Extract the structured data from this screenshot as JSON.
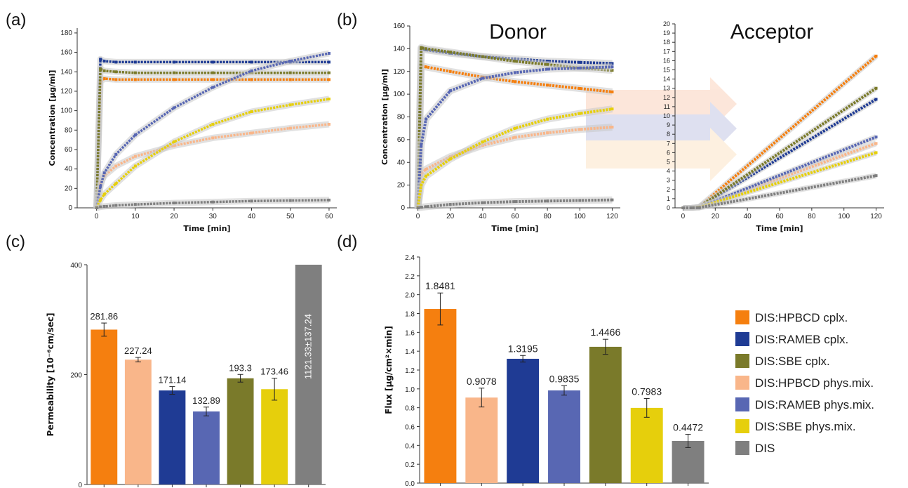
{
  "figure": {
    "panel_labels": [
      "(a)",
      "(b)",
      "(c)",
      "(d)"
    ],
    "panel_b_titles": {
      "donor": "Donor",
      "acceptor": "Acceptor"
    }
  },
  "legend": {
    "items": [
      {
        "label": "DIS:HPBCD cplx.",
        "color": "#f57f0f"
      },
      {
        "label": "DIS:RAMEB cplx.",
        "color": "#1f3b94"
      },
      {
        "label": "DIS:SBE cplx.",
        "color": "#7a7a2a"
      },
      {
        "label": "DIS:HPBCD phys.mix.",
        "color": "#f9b68a"
      },
      {
        "label": "DIS:RAMEB phys.mix.",
        "color": "#5867b3"
      },
      {
        "label": "DIS:SBE phys.mix.",
        "color": "#e6cf0c"
      },
      {
        "label": "DIS",
        "color": "#7f7f7f"
      }
    ]
  },
  "chart_data": [
    {
      "panel": "(a)",
      "type": "line",
      "xlabel": "Time [min]",
      "ylabel": "Concentration [µg/ml]",
      "xlim": [
        -5,
        62
      ],
      "ylim": [
        0,
        185
      ],
      "xticks": [
        0,
        10,
        20,
        30,
        40,
        50,
        60
      ],
      "yticks": [
        0,
        20,
        40,
        60,
        80,
        100,
        120,
        140,
        160,
        180
      ],
      "grid": false,
      "series": [
        {
          "name": "DIS:HPBCD cplx.",
          "x": [
            0,
            1,
            2,
            5,
            10,
            20,
            30,
            40,
            50,
            60
          ],
          "y": [
            0,
            130,
            133,
            132,
            132,
            132,
            132,
            132,
            132,
            132
          ]
        },
        {
          "name": "DIS:RAMEB cplx.",
          "x": [
            0,
            1,
            2,
            5,
            10,
            20,
            30,
            40,
            50,
            60
          ],
          "y": [
            0,
            153,
            151,
            150,
            150,
            150,
            150,
            150,
            150,
            150
          ]
        },
        {
          "name": "DIS:SBE cplx.",
          "x": [
            0,
            1,
            2,
            5,
            10,
            20,
            30,
            40,
            50,
            60
          ],
          "y": [
            0,
            143,
            141,
            140,
            139,
            139,
            139,
            139,
            139,
            139
          ]
        },
        {
          "name": "DIS:HPBCD phys.mix.",
          "x": [
            0,
            1,
            2,
            5,
            10,
            20,
            30,
            40,
            50,
            60
          ],
          "y": [
            0,
            25,
            33,
            43,
            53,
            64,
            72,
            77,
            82,
            86
          ]
        },
        {
          "name": "DIS:RAMEB phys.mix.",
          "x": [
            0,
            1,
            2,
            5,
            10,
            20,
            30,
            40,
            50,
            60
          ],
          "y": [
            0,
            22,
            36,
            55,
            75,
            103,
            124,
            141,
            151,
            159
          ]
        },
        {
          "name": "DIS:SBE phys.mix.",
          "x": [
            0,
            1,
            2,
            5,
            10,
            20,
            30,
            40,
            50,
            60
          ],
          "y": [
            0,
            8,
            14,
            25,
            43,
            68,
            86,
            99,
            106,
            112
          ]
        },
        {
          "name": "DIS",
          "x": [
            0,
            1,
            2,
            5,
            10,
            20,
            30,
            40,
            50,
            60
          ],
          "y": [
            0,
            1,
            1.5,
            2.5,
            3.5,
            5,
            6,
            7,
            7.5,
            8
          ]
        }
      ]
    },
    {
      "panel": "(b) Donor",
      "type": "line",
      "title": "Donor",
      "xlabel": "Time [min]",
      "ylabel": "Concentration [µg/ml]",
      "xlim": [
        -5,
        125
      ],
      "ylim": [
        0,
        160
      ],
      "xticks": [
        0,
        20,
        40,
        60,
        80,
        100,
        120
      ],
      "yticks": [
        0,
        20,
        40,
        60,
        80,
        100,
        120,
        140,
        160
      ],
      "series": [
        {
          "name": "DIS:HPBCD cplx.",
          "x": [
            0,
            2,
            5,
            20,
            40,
            60,
            80,
            100,
            120
          ],
          "y": [
            0,
            125,
            124,
            120,
            115,
            111,
            108,
            105,
            102
          ]
        },
        {
          "name": "DIS:RAMEB cplx.",
          "x": [
            0,
            2,
            5,
            20,
            40,
            60,
            80,
            100,
            120
          ],
          "y": [
            0,
            140,
            139,
            136,
            133,
            131,
            129,
            128,
            127
          ]
        },
        {
          "name": "DIS:SBE cplx.",
          "x": [
            0,
            2,
            5,
            20,
            40,
            60,
            80,
            100,
            120
          ],
          "y": [
            0,
            141,
            140,
            137,
            133,
            129,
            126,
            123,
            121
          ]
        },
        {
          "name": "DIS:HPBCD phys.mix.",
          "x": [
            0,
            2,
            5,
            20,
            40,
            60,
            80,
            100,
            120
          ],
          "y": [
            0,
            30,
            34,
            45,
            55,
            62,
            66,
            69,
            71
          ]
        },
        {
          "name": "DIS:RAMEB phys.mix.",
          "x": [
            0,
            2,
            5,
            20,
            40,
            60,
            80,
            100,
            120
          ],
          "y": [
            0,
            55,
            78,
            103,
            114,
            119,
            122,
            123,
            124
          ]
        },
        {
          "name": "DIS:SBE phys.mix.",
          "x": [
            0,
            2,
            5,
            20,
            40,
            60,
            80,
            100,
            120
          ],
          "y": [
            0,
            20,
            28,
            43,
            58,
            70,
            78,
            83,
            87
          ]
        },
        {
          "name": "DIS",
          "x": [
            0,
            2,
            5,
            20,
            40,
            60,
            80,
            100,
            120
          ],
          "y": [
            0,
            0.5,
            1,
            3,
            4.5,
            5.5,
            6,
            6.5,
            7
          ]
        }
      ]
    },
    {
      "panel": "(b) Acceptor",
      "type": "line",
      "title": "Acceptor",
      "xlabel": "Time [min]",
      "xlim": [
        -5,
        125
      ],
      "ylim": [
        0,
        20
      ],
      "xticks": [
        0,
        20,
        40,
        60,
        80,
        100,
        120
      ],
      "yticks": [
        0,
        1,
        2,
        3,
        4,
        5,
        6,
        7,
        8,
        9,
        10,
        11,
        12,
        13,
        14,
        15,
        16,
        17,
        18,
        19,
        20
      ],
      "series": [
        {
          "name": "DIS:HPBCD cplx.",
          "x": [
            0,
            5,
            10,
            120
          ],
          "y": [
            0,
            0,
            0.1,
            16.5
          ]
        },
        {
          "name": "DIS:RAMEB cplx.",
          "x": [
            0,
            5,
            10,
            120
          ],
          "y": [
            0,
            0,
            0.1,
            11.8
          ]
        },
        {
          "name": "DIS:SBE cplx.",
          "x": [
            0,
            5,
            10,
            120
          ],
          "y": [
            0,
            0,
            0.1,
            13.0
          ]
        },
        {
          "name": "DIS:HPBCD phys.mix.",
          "x": [
            0,
            5,
            10,
            120
          ],
          "y": [
            0,
            0,
            0.05,
            7.0
          ]
        },
        {
          "name": "DIS:RAMEB phys.mix.",
          "x": [
            0,
            5,
            10,
            120
          ],
          "y": [
            0,
            0,
            0.05,
            7.7
          ]
        },
        {
          "name": "DIS:SBE phys.mix.",
          "x": [
            0,
            5,
            10,
            120
          ],
          "y": [
            0,
            0,
            0.05,
            6.0
          ]
        },
        {
          "name": "DIS",
          "x": [
            0,
            5,
            10,
            120
          ],
          "y": [
            0,
            0,
            0.02,
            3.5
          ]
        }
      ]
    },
    {
      "panel": "(c)",
      "type": "bar",
      "ylabel": "Permeability [10⁻⁶cm/sec]",
      "ylim": [
        0,
        400
      ],
      "yticks": [
        0,
        200,
        400
      ],
      "categories": [
        "DIS:HPBCD cplx.",
        "DIS:HPBCD phys.mix.",
        "DIS:RAMEB cplx.",
        "DIS:RAMEB phys.mix.",
        "DIS:SBE cplx.",
        "DIS:SBE phys.mix.",
        "DIS"
      ],
      "values": [
        281.86,
        227.24,
        171.14,
        132.89,
        193.3,
        173.46,
        400
      ],
      "errors": [
        12,
        4,
        7,
        8,
        7,
        20,
        0
      ],
      "labels": [
        "281.86",
        "227.24",
        "171.14",
        "132.89",
        "193.3",
        "173.46",
        "1121.33±137.24"
      ],
      "colors": [
        "#f57f0f",
        "#f9b68a",
        "#1f3b94",
        "#5867b3",
        "#7a7a2a",
        "#e6cf0c",
        "#7f7f7f"
      ]
    },
    {
      "panel": "(d)",
      "type": "bar",
      "ylabel": "Flux [µg/cm²×min]",
      "ylim": [
        0,
        2.4
      ],
      "yticks": [
        0.0,
        0.2,
        0.4,
        0.6,
        0.8,
        1.0,
        1.2,
        1.4,
        1.6,
        1.8,
        2.0,
        2.2,
        2.4
      ],
      "categories": [
        "DIS:HPBCD cplx.",
        "DIS:HPBCD phys.mix.",
        "DIS:RAMEB cplx.",
        "DIS:RAMEB phys.mix.",
        "DIS:SBE cplx.",
        "DIS:SBE phys.mix.",
        "DIS"
      ],
      "values": [
        1.8481,
        0.9078,
        1.3195,
        0.9835,
        1.4466,
        0.7983,
        0.4472
      ],
      "errors": [
        0.17,
        0.1,
        0.035,
        0.05,
        0.08,
        0.1,
        0.07
      ],
      "labels": [
        "1.8481",
        "0.9078",
        "1.3195",
        "0.9835",
        "1.4466",
        "0.7983",
        "0.4472"
      ],
      "colors": [
        "#f57f0f",
        "#f9b68a",
        "#1f3b94",
        "#5867b3",
        "#7a7a2a",
        "#e6cf0c",
        "#7f7f7f"
      ]
    }
  ]
}
